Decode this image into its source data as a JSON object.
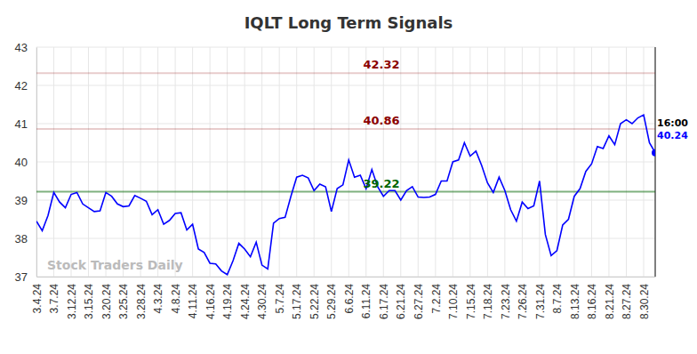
{
  "chart_data": {
    "type": "line",
    "title": "IQLT Long Term Signals",
    "watermark": "Stock Traders Daily",
    "last_label": "16:00",
    "color": "#0000ff",
    "grid": true,
    "ylim": [
      37,
      43
    ],
    "yticks": [
      37,
      38,
      39,
      40,
      41,
      42,
      43
    ],
    "signal_lines": {
      "values": [
        42.32,
        40.86,
        39.22
      ],
      "colors": [
        "#8b0000",
        "#8b0000",
        "#006400"
      ]
    },
    "categories": [
      "3.4.24",
      null,
      null,
      "3.7.24",
      null,
      null,
      "3.12.24",
      null,
      null,
      "3.15.24",
      null,
      null,
      "3.20.24",
      null,
      null,
      "3.25.24",
      null,
      null,
      "3.28.24",
      null,
      null,
      "4.3.24",
      null,
      null,
      "4.8.24",
      null,
      null,
      "4.11.24",
      null,
      null,
      "4.16.24",
      null,
      null,
      "4.19.24",
      null,
      null,
      "4.24.24",
      null,
      null,
      "4.30.24",
      null,
      null,
      "5.7.24",
      null,
      null,
      "5.17.24",
      null,
      null,
      "5.22.24",
      null,
      null,
      "5.29.24",
      null,
      null,
      "6.6.24",
      null,
      null,
      "6.11.24",
      null,
      null,
      "6.17.24",
      null,
      null,
      "6.21.24",
      null,
      null,
      "6.27.24",
      null,
      null,
      "7.2.24",
      null,
      null,
      "7.10.24",
      null,
      null,
      "7.15.24",
      null,
      null,
      "7.18.24",
      null,
      null,
      "7.23.24",
      null,
      null,
      "7.26.24",
      null,
      null,
      "7.31.24",
      null,
      null,
      "8.7.24",
      null,
      null,
      "8.13.24",
      null,
      null,
      "8.16.24",
      null,
      null,
      "8.21.24",
      null,
      null,
      "8.27.24",
      null,
      null,
      "8.30.24",
      null,
      null
    ],
    "values": [
      38.45,
      38.2,
      38.6,
      39.2,
      38.95,
      38.8,
      39.15,
      39.2,
      38.9,
      38.8,
      38.7,
      38.72,
      39.2,
      39.1,
      38.9,
      38.83,
      38.85,
      39.12,
      39.05,
      38.97,
      38.62,
      38.75,
      38.37,
      38.47,
      38.65,
      38.67,
      38.22,
      38.37,
      37.72,
      37.63,
      37.35,
      37.33,
      37.15,
      37.05,
      37.42,
      37.87,
      37.72,
      37.52,
      37.9,
      37.3,
      37.2,
      38.4,
      38.52,
      38.55,
      39.1,
      39.6,
      39.65,
      39.58,
      39.25,
      39.42,
      39.35,
      38.7,
      39.3,
      39.4,
      40.05,
      39.6,
      39.65,
      39.3,
      39.8,
      39.35,
      39.1,
      39.25,
      39.25,
      39.0,
      39.25,
      39.35,
      39.08,
      39.07,
      39.08,
      39.15,
      39.5,
      39.5,
      40.0,
      40.05,
      40.5,
      40.15,
      40.28,
      39.9,
      39.45,
      39.2,
      39.6,
      39.25,
      38.75,
      38.45,
      38.95,
      38.78,
      38.85,
      39.5,
      38.1,
      37.55,
      37.68,
      38.35,
      38.5,
      39.1,
      39.3,
      39.75,
      39.95,
      40.4,
      40.35,
      40.68,
      40.45,
      41.0,
      41.1,
      41.0,
      41.15,
      41.23,
      40.5,
      40.24
    ]
  }
}
